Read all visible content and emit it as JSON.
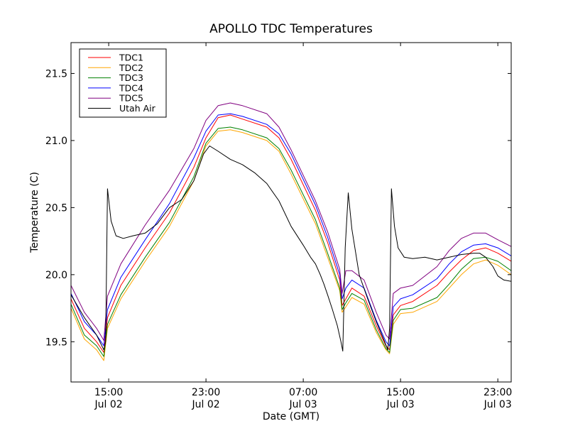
{
  "chart_data": {
    "type": "line",
    "title": "APOLLO TDC Temperatures",
    "xlabel": "Date (GMT)",
    "ylabel": "Temperature (C)",
    "x_units": "hours since Jul 02 00:00 GMT",
    "xlim": [
      11.9,
      48.1
    ],
    "ylim": [
      19.2,
      21.73
    ],
    "grid": false,
    "legend_position": "top-left",
    "xticks": [
      {
        "value": 15,
        "label_time": "15:00",
        "label_date": "Jul 02"
      },
      {
        "value": 23,
        "label_time": "23:00",
        "label_date": "Jul 02"
      },
      {
        "value": 31,
        "label_time": "07:00",
        "label_date": "Jul 03"
      },
      {
        "value": 39,
        "label_time": "15:00",
        "label_date": "Jul 03"
      },
      {
        "value": 47,
        "label_time": "23:00",
        "label_date": "Jul 03"
      }
    ],
    "yticks": [
      {
        "value": 19.5,
        "label": "19.5"
      },
      {
        "value": 20.0,
        "label": "20.0"
      },
      {
        "value": 20.5,
        "label": "20.5"
      },
      {
        "value": 21.0,
        "label": "21.0"
      },
      {
        "value": 21.5,
        "label": "21.5"
      }
    ],
    "series": [
      {
        "name": "TDC1",
        "color": "#ff0000",
        "x": [
          11.9,
          13,
          14,
          14.6,
          14.9,
          16,
          18,
          20,
          22,
          23,
          24,
          25,
          26,
          28,
          29,
          30,
          32,
          33,
          34,
          34.2,
          34.5,
          35,
          36,
          37,
          37.8,
          38.1,
          38.4,
          39,
          40,
          42,
          43,
          44,
          45,
          46,
          47,
          48.1
        ],
        "y": [
          19.82,
          19.6,
          19.5,
          19.42,
          19.68,
          19.92,
          20.2,
          20.46,
          20.8,
          21.02,
          21.17,
          21.19,
          21.16,
          21.1,
          21.02,
          20.86,
          20.48,
          20.24,
          19.96,
          19.77,
          19.82,
          19.9,
          19.84,
          19.62,
          19.47,
          19.44,
          19.7,
          19.77,
          19.8,
          19.92,
          20.02,
          20.11,
          20.18,
          20.2,
          20.16,
          20.1
        ]
      },
      {
        "name": "TDC2",
        "color": "#ffa500",
        "x": [
          11.9,
          13,
          14,
          14.6,
          14.9,
          16,
          18,
          20,
          22,
          23,
          24,
          25,
          26,
          28,
          29,
          30,
          32,
          33,
          34,
          34.2,
          34.5,
          35,
          36,
          37,
          37.8,
          38.1,
          38.4,
          39,
          40,
          42,
          43,
          44,
          45,
          46,
          47,
          48.1
        ],
        "y": [
          19.75,
          19.52,
          19.44,
          19.36,
          19.6,
          19.82,
          20.1,
          20.36,
          20.7,
          20.96,
          21.07,
          21.08,
          21.06,
          21.0,
          20.92,
          20.75,
          20.38,
          20.13,
          19.88,
          19.72,
          19.76,
          19.83,
          19.78,
          19.57,
          19.44,
          19.41,
          19.63,
          19.71,
          19.72,
          19.8,
          19.9,
          20.0,
          20.08,
          20.11,
          20.07,
          20.0
        ]
      },
      {
        "name": "TDC3",
        "color": "#008000",
        "x": [
          11.9,
          13,
          14,
          14.6,
          14.9,
          16,
          18,
          20,
          22,
          23,
          24,
          25,
          26,
          28,
          29,
          30,
          32,
          33,
          34,
          34.2,
          34.5,
          35,
          36,
          37,
          37.8,
          38.1,
          38.4,
          39,
          40,
          42,
          43,
          44,
          45,
          46,
          47,
          48.1
        ],
        "y": [
          19.78,
          19.55,
          19.47,
          19.39,
          19.63,
          19.85,
          20.13,
          20.39,
          20.73,
          20.98,
          21.09,
          21.1,
          21.08,
          21.02,
          20.94,
          20.78,
          20.41,
          20.16,
          19.9,
          19.74,
          19.79,
          19.86,
          19.81,
          19.59,
          19.45,
          19.42,
          19.66,
          19.74,
          19.75,
          19.83,
          19.93,
          20.04,
          20.12,
          20.13,
          20.1,
          20.03
        ]
      },
      {
        "name": "TDC4",
        "color": "#0000ff",
        "x": [
          11.9,
          13,
          14,
          14.6,
          14.9,
          16,
          18,
          20,
          22,
          23,
          24,
          25,
          26,
          28,
          29,
          30,
          32,
          33,
          34,
          34.2,
          34.5,
          35,
          36,
          37,
          37.8,
          38.1,
          38.4,
          39,
          40,
          42,
          43,
          44,
          45,
          46,
          47,
          48.1
        ],
        "y": [
          19.86,
          19.65,
          19.55,
          19.47,
          19.74,
          19.98,
          20.26,
          20.53,
          20.87,
          21.07,
          21.19,
          21.2,
          21.18,
          21.12,
          21.05,
          20.9,
          20.52,
          20.28,
          20.0,
          19.82,
          19.9,
          19.96,
          19.9,
          19.66,
          19.5,
          19.47,
          19.76,
          19.82,
          19.85,
          19.97,
          20.08,
          20.17,
          20.22,
          20.23,
          20.2,
          20.14
        ]
      },
      {
        "name": "TDC5",
        "color": "#800080",
        "x": [
          11.9,
          13,
          14,
          14.6,
          14.9,
          16,
          18,
          20,
          22,
          23,
          24,
          25,
          26,
          28,
          29,
          30,
          32,
          33,
          34,
          34.2,
          34.5,
          35,
          36,
          37,
          37.8,
          38.1,
          38.4,
          39,
          40,
          42,
          43,
          44,
          45,
          46,
          47,
          48.1
        ],
        "y": [
          19.92,
          19.72,
          19.6,
          19.51,
          19.84,
          20.08,
          20.37,
          20.63,
          20.94,
          21.15,
          21.26,
          21.28,
          21.26,
          21.2,
          21.1,
          20.93,
          20.55,
          20.32,
          20.04,
          19.86,
          20.03,
          20.03,
          19.96,
          19.72,
          19.55,
          19.52,
          19.86,
          19.9,
          19.92,
          20.06,
          20.18,
          20.27,
          20.31,
          20.31,
          20.26,
          20.21
        ]
      },
      {
        "name": "Utah Air",
        "color": "#000000",
        "x": [
          11.9,
          13,
          14,
          14.6,
          14.75,
          14.9,
          15.2,
          15.6,
          16.2,
          17,
          18,
          19,
          20,
          21,
          22,
          22.8,
          23.3,
          24,
          25,
          26,
          27,
          28,
          29,
          30,
          31,
          31.6,
          32,
          32.4,
          32.7,
          33,
          33.4,
          33.8,
          34.1,
          34.25,
          34.45,
          34.7,
          35,
          35.6,
          36.3,
          37,
          37.6,
          37.95,
          38.1,
          38.25,
          38.5,
          38.8,
          39.3,
          40,
          41,
          42,
          43,
          44,
          45,
          45.5,
          46,
          46.6,
          47,
          47.5,
          48.1
        ],
        "y": [
          19.85,
          19.68,
          19.55,
          19.44,
          19.5,
          20.64,
          20.4,
          20.29,
          20.27,
          20.29,
          20.31,
          20.38,
          20.5,
          20.56,
          20.7,
          20.9,
          20.96,
          20.92,
          20.86,
          20.82,
          20.76,
          20.68,
          20.55,
          20.36,
          20.22,
          20.13,
          20.08,
          20.0,
          19.93,
          19.85,
          19.74,
          19.62,
          19.5,
          19.43,
          20.2,
          20.61,
          20.34,
          20.0,
          19.82,
          19.65,
          19.52,
          19.44,
          19.6,
          20.64,
          20.36,
          20.2,
          20.13,
          20.12,
          20.13,
          20.11,
          20.13,
          20.15,
          20.16,
          20.16,
          20.13,
          20.06,
          19.99,
          19.96,
          19.95
        ]
      }
    ]
  }
}
